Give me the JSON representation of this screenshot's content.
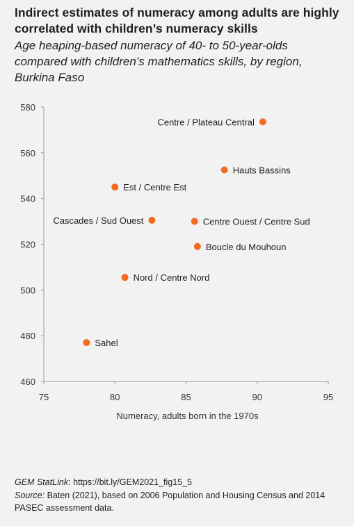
{
  "title": "Indirect estimates of numeracy among adults are highly correlated with children’s numeracy skills",
  "subtitle": "Age heaping-based numeracy of 40- to 50-year-olds compared with children’s mathematics skills, by region, Burkina Faso",
  "chart_data": {
    "type": "scatter",
    "xlabel": "Numeracy, adults born in the 1970s",
    "ylabel": "",
    "xlim": [
      75,
      95
    ],
    "ylim": [
      460,
      580
    ],
    "xticks": [
      75,
      80,
      85,
      90,
      95
    ],
    "yticks": [
      460,
      480,
      500,
      520,
      540,
      560,
      580
    ],
    "grid": false,
    "point_color": "#f26b21",
    "points": [
      {
        "label": "Centre / Plateau Central",
        "x": 90.4,
        "y": 573.5,
        "label_side": "left"
      },
      {
        "label": "Hauts Bassins",
        "x": 87.7,
        "y": 552.5,
        "label_side": "right"
      },
      {
        "label": "Est / Centre Est",
        "x": 80.0,
        "y": 545.0,
        "label_side": "right"
      },
      {
        "label": "Cascades / Sud Ouest",
        "x": 82.6,
        "y": 530.5,
        "label_side": "left"
      },
      {
        "label": "Centre Ouest / Centre Sud",
        "x": 85.6,
        "y": 530.0,
        "label_side": "right"
      },
      {
        "label": "Boucle du Mouhoun",
        "x": 85.8,
        "y": 519.0,
        "label_side": "right"
      },
      {
        "label": "Nord / Centre Nord",
        "x": 80.7,
        "y": 505.5,
        "label_side": "right"
      },
      {
        "label": "Sahel",
        "x": 78.0,
        "y": 477.0,
        "label_side": "right"
      }
    ]
  },
  "footer": {
    "statlink_label": "GEM StatLink",
    "statlink_url": ": https://bit.ly/GEM2021_fig15_5",
    "source_label": "Source:",
    "source_text": " Baten (2021), based on 2006 Population and Housing Census and 2014 PASEC assessment data."
  }
}
